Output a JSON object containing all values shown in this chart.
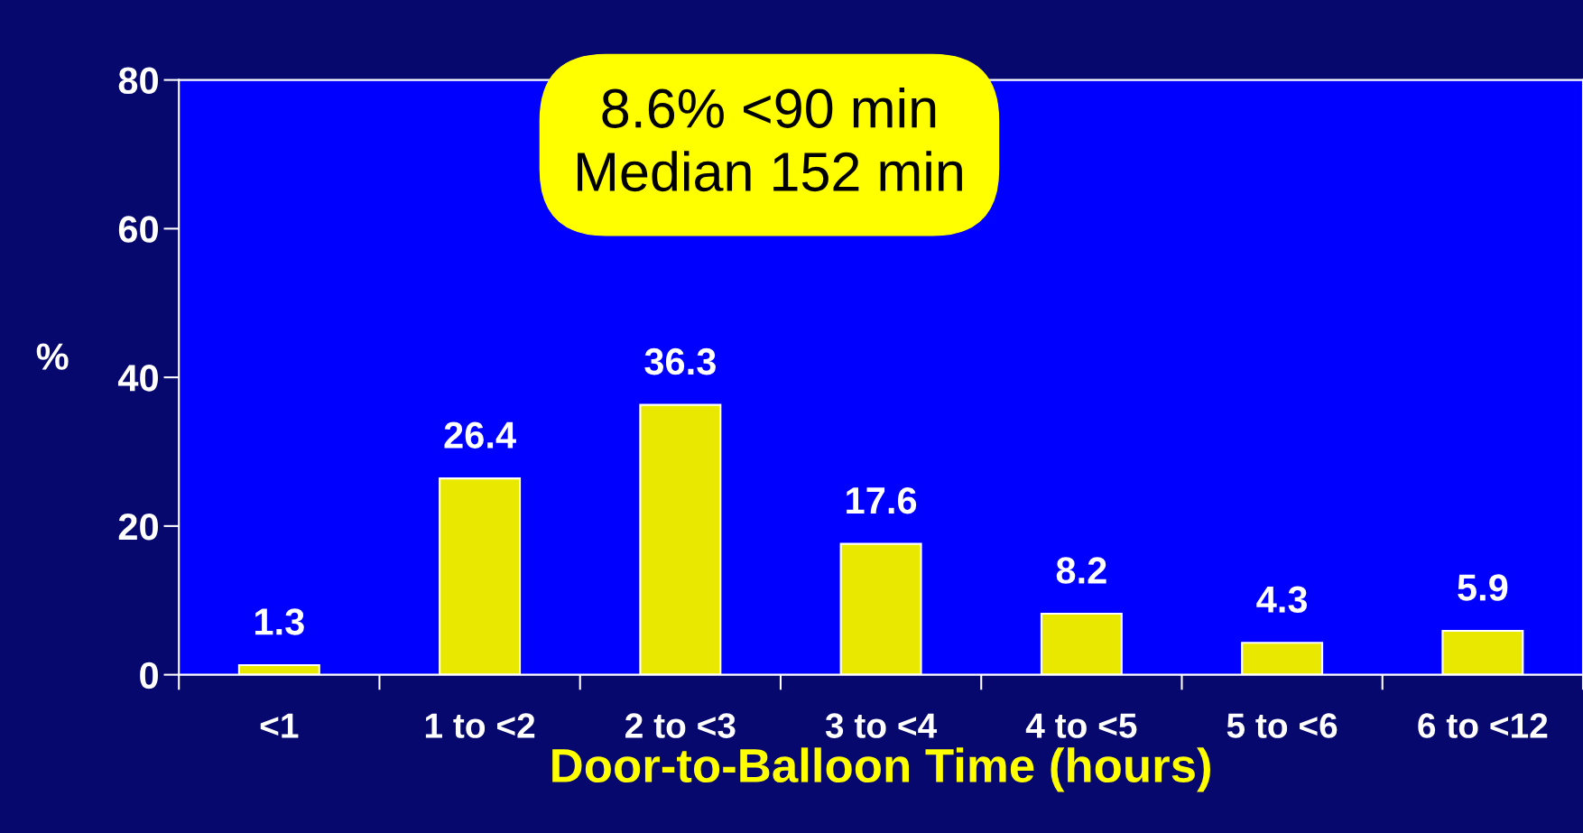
{
  "chart_data": {
    "type": "bar",
    "categories": [
      "<1",
      "1 to <2",
      "2 to <3",
      "3 to <4",
      "4 to <5",
      "5 to <6",
      "6 to <12"
    ],
    "values": [
      1.3,
      26.4,
      36.3,
      17.6,
      8.2,
      4.3,
      5.9
    ],
    "color": "#e8e800",
    "ylim": [
      0,
      80
    ],
    "yticks": [
      0,
      20,
      40,
      60,
      80
    ],
    "ylabel": "%",
    "xlabel": "Door-to-Balloon Time (hours)",
    "data_labels": true,
    "grid": false,
    "legend": false,
    "annotations": [
      "8.6% <90 min\nMedian 152 min"
    ]
  }
}
